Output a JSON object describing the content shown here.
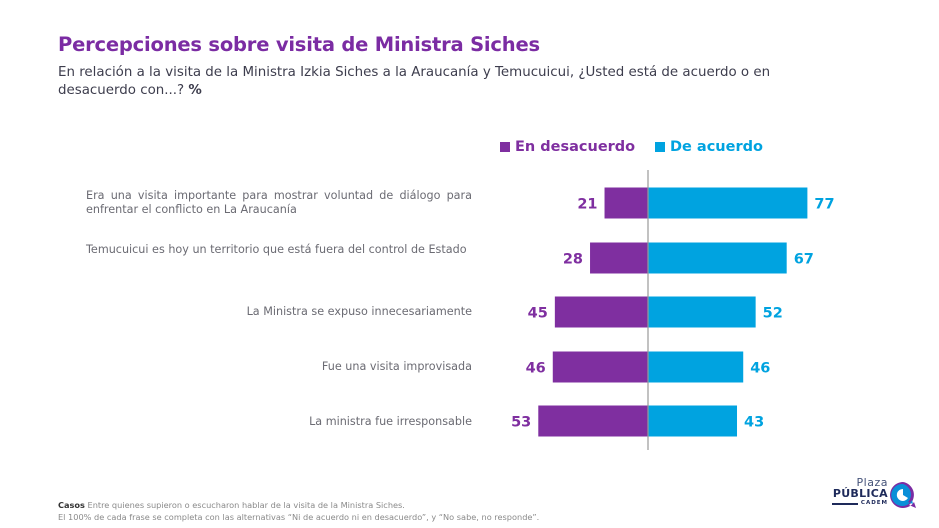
{
  "header": {
    "title": "Percepciones sobre visita de Ministra Siches",
    "subtitle": "En relación a la visita de la Ministra Izkia Siches a la Araucanía y Temucuicui, ¿Usted está de acuerdo o en desacuerdo con...?",
    "subtitle_unit": "%"
  },
  "colors": {
    "title": "#7b2ca3",
    "desacuerdo": "#7f2fa0",
    "acuerdo": "#00a3e0",
    "axis": "#9a9a9a"
  },
  "chart_data": {
    "type": "bar",
    "orientation": "horizontal-diverging",
    "title": "Percepciones sobre visita de Ministra Siches",
    "unit": "%",
    "categories": [
      "Era una visita importante para mostrar voluntad de diálogo para enfrentar el conflicto en La Araucanía",
      "Temucuicui es hoy un territorio que está fuera del control de Estado",
      "La Ministra se expuso innecesariamente",
      "Fue una visita improvisada",
      "La ministra fue irresponsable"
    ],
    "series": [
      {
        "name": "En desacuerdo",
        "color": "#7f2fa0",
        "direction": "left",
        "values": [
          21,
          28,
          45,
          46,
          53
        ]
      },
      {
        "name": "De acuerdo",
        "color": "#00a3e0",
        "direction": "right",
        "values": [
          77,
          67,
          52,
          46,
          43
        ]
      }
    ],
    "legend": {
      "placement": "top-right",
      "items": [
        "En desacuerdo",
        "De acuerdo"
      ]
    },
    "xlim": [
      -60,
      80
    ],
    "grid": false
  },
  "footer": {
    "cases_label": "Casos",
    "cases_text": "Entre quienes supieron o escucharon hablar de la visita de la Ministra Siches.",
    "note": "El 100% de cada frase se completa con las alternativas “Ni de acuerdo ni en desacuerdo”, y “No sabe, no responde”."
  },
  "logo": {
    "line1": "Plaza",
    "line2": "PÚBLICA",
    "line3": "CADEM"
  }
}
